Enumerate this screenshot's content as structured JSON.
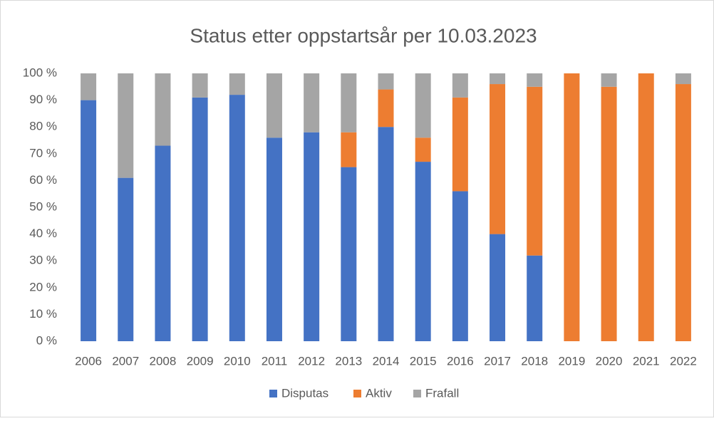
{
  "chart_data": {
    "type": "stacked_bar",
    "title": "Status etter oppstartsår per 10.03.2023",
    "categories": [
      "2006",
      "2007",
      "2008",
      "2009",
      "2010",
      "2011",
      "2012",
      "2013",
      "2014",
      "2015",
      "2016",
      "2017",
      "2018",
      "2019",
      "2020",
      "2021",
      "2022"
    ],
    "series": [
      {
        "name": "Disputas",
        "color": "#4472c4",
        "values": [
          90,
          61,
          73,
          91,
          92,
          76,
          78,
          65,
          80,
          67,
          56,
          40,
          32,
          0,
          0,
          0,
          0
        ]
      },
      {
        "name": "Aktiv",
        "color": "#ed7d31",
        "values": [
          0,
          0,
          0,
          0,
          0,
          0,
          0,
          13,
          14,
          9,
          35,
          56,
          63,
          100,
          95,
          100,
          96
        ]
      },
      {
        "name": "Frafall",
        "color": "#a5a5a5",
        "values": [
          10,
          39,
          27,
          9,
          8,
          24,
          22,
          22,
          6,
          24,
          9,
          4,
          5,
          0,
          5,
          0,
          4
        ]
      }
    ],
    "ylim": [
      0,
      100
    ],
    "yticks": [
      {
        "value": 0,
        "label": "0 %"
      },
      {
        "value": 10,
        "label": "10 %"
      },
      {
        "value": 20,
        "label": "20 %"
      },
      {
        "value": 30,
        "label": "30 %"
      },
      {
        "value": 40,
        "label": "40 %"
      },
      {
        "value": 50,
        "label": "50 %"
      },
      {
        "value": 60,
        "label": "60 %"
      },
      {
        "value": 70,
        "label": "70 %"
      },
      {
        "value": 80,
        "label": "80 %"
      },
      {
        "value": 90,
        "label": "90 %"
      },
      {
        "value": 100,
        "label": "100 %"
      }
    ],
    "legend": "bottom"
  }
}
